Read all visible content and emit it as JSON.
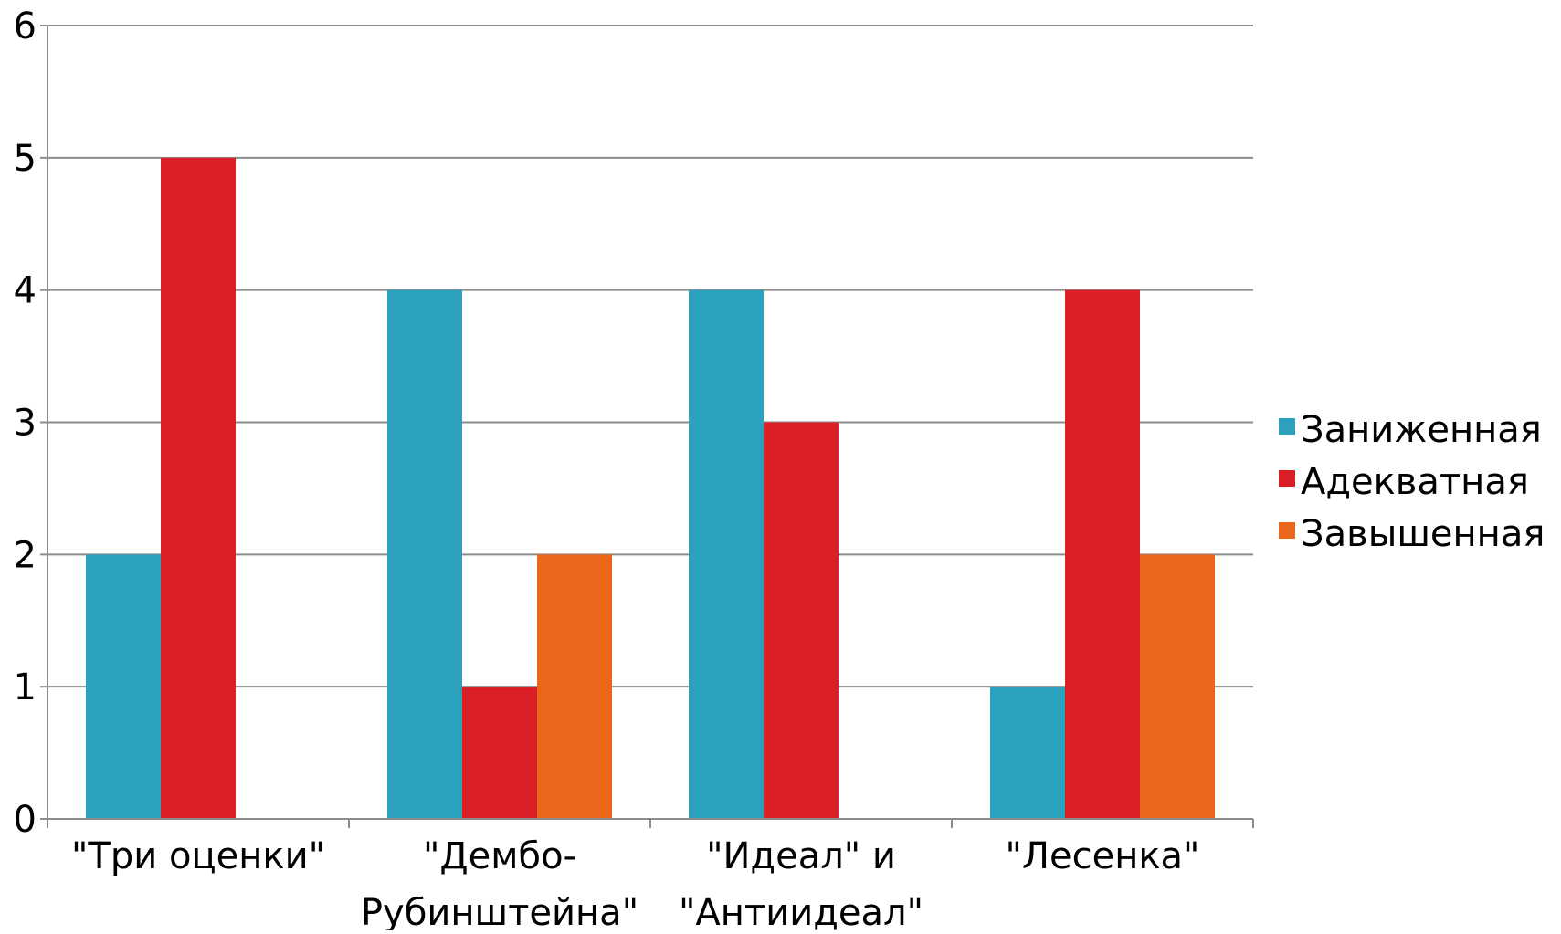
{
  "chart_data": {
    "type": "bar",
    "title": "",
    "xlabel": "",
    "ylabel": "",
    "categories": [
      [
        "\"Три оценки\""
      ],
      [
        "\"Дембо-",
        "Рубинштейна\""
      ],
      [
        "\"Идеал\" и",
        "\"Антиидеал\""
      ],
      [
        "\"Лесенка\""
      ]
    ],
    "series": [
      {
        "name": "Заниженная",
        "color": "#2ca1be",
        "values": [
          2,
          4,
          4,
          1
        ]
      },
      {
        "name": "Адекватная",
        "color": "#da1f27",
        "values": [
          5,
          1,
          3,
          4
        ]
      },
      {
        "name": "Завышенная",
        "color": "#ea661a",
        "values": [
          0,
          2,
          0,
          2
        ]
      }
    ],
    "ylim": [
      0,
      6
    ],
    "yticks": [
      0,
      1,
      2,
      3,
      4,
      5,
      6
    ],
    "grid": true,
    "legend": "right"
  }
}
